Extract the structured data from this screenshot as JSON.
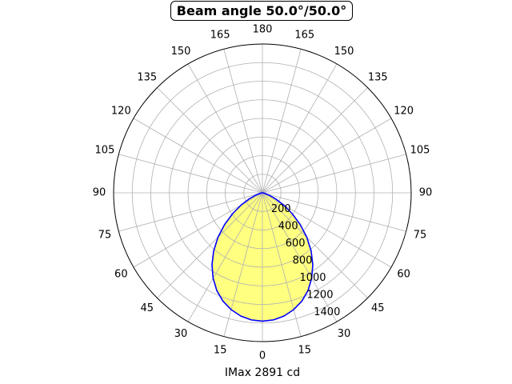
{
  "chart_data": {
    "type": "polar-line",
    "title": "Beam angle 50.0°/50.0°",
    "xlabel": "IMax 2891 cd",
    "angle_ticks_left": [
      "0",
      "15",
      "30",
      "45",
      "60",
      "75",
      "90",
      "105",
      "120",
      "135",
      "150",
      "165",
      "180"
    ],
    "angle_ticks_right": [
      "15",
      "30",
      "45",
      "60",
      "75",
      "90",
      "105",
      "120",
      "135",
      "150",
      "165"
    ],
    "radial_ticks": [
      "200",
      "400",
      "600",
      "800",
      "1000",
      "1200",
      "1400"
    ],
    "rmax": 1600,
    "grid": true,
    "fill_color": "#ffff80",
    "line_color": "#0000ff",
    "series": [
      {
        "angles": [
          0,
          5,
          10,
          15,
          20,
          25,
          30,
          35,
          40,
          45,
          50,
          55,
          60,
          65,
          70,
          75,
          80,
          85,
          90
        ],
        "values": [
          1380,
          1372,
          1345,
          1300,
          1240,
          1160,
          1060,
          945,
          815,
          675,
          530,
          390,
          265,
          160,
          82,
          32,
          10,
          3,
          0
        ]
      }
    ]
  }
}
